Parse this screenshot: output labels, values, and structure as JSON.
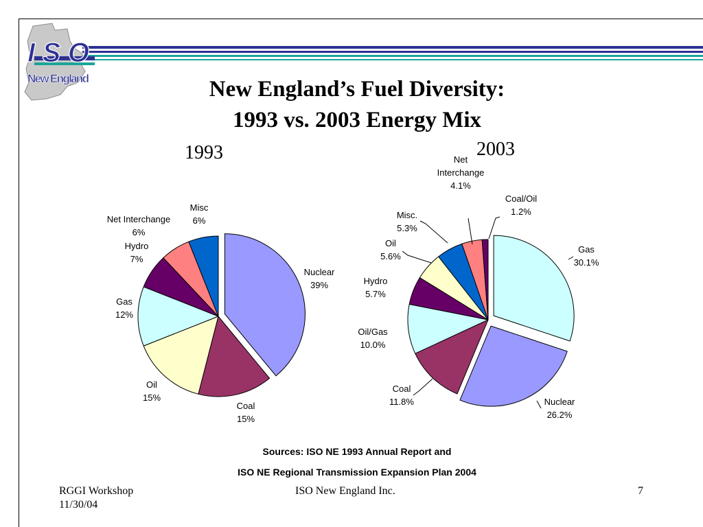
{
  "slide": {
    "title_line1": "New England’s Fuel Diversity:",
    "title_line2": "1993 vs. 2003 Energy Mix",
    "logo": {
      "text_top": "ISO",
      "text_bottom": "New England",
      "colors": {
        "navy": "#2e3192",
        "teal": "#1ba59a",
        "gray": "#c9c9c9"
      }
    },
    "sources_line1": "Sources: ISO NE 1993 Annual Report and",
    "sources_line2": "ISO NE Regional Transmission Expansion Plan 2004",
    "footer": {
      "left_line1": "RGGI Workshop",
      "left_line2": "11/30/04",
      "center": "ISO New England Inc.",
      "page_number": "7"
    }
  },
  "chart_data": [
    {
      "type": "pie",
      "title": "1993",
      "start_angle_deg": 0,
      "slices": [
        {
          "name": "Nuclear",
          "value": 39,
          "label": "39%",
          "color": "#9999ff",
          "exploded": true
        },
        {
          "name": "Coal",
          "value": 15,
          "label": "15%",
          "color": "#993366",
          "exploded": false
        },
        {
          "name": "Oil",
          "value": 15,
          "label": "15%",
          "color": "#ffffcc",
          "exploded": false
        },
        {
          "name": "Gas",
          "value": 12,
          "label": "12%",
          "color": "#ccffff",
          "exploded": false
        },
        {
          "name": "Hydro",
          "value": 7,
          "label": "7%",
          "color": "#660066",
          "exploded": false
        },
        {
          "name": "Net Interchange",
          "value": 6,
          "label": "6%",
          "color": "#ff8080",
          "exploded": false
        },
        {
          "name": "Misc",
          "value": 6,
          "label": "6%",
          "color": "#0066cc",
          "exploded": false
        }
      ]
    },
    {
      "type": "pie",
      "title": "2003",
      "start_angle_deg": 0,
      "slices": [
        {
          "name": "Gas",
          "value": 30.1,
          "label": "30.1%",
          "color": "#ccffff",
          "exploded": true
        },
        {
          "name": "Nuclear",
          "value": 26.2,
          "label": "26.2%",
          "color": "#9999ff",
          "exploded": true
        },
        {
          "name": "Coal",
          "value": 11.8,
          "label": "11.8%",
          "color": "#993366",
          "exploded": false
        },
        {
          "name": "Oil/Gas",
          "value": 10.0,
          "label": "10.0%",
          "color": "#ccffff",
          "exploded": false
        },
        {
          "name": "Hydro",
          "value": 5.7,
          "label": "5.7%",
          "color": "#660066",
          "exploded": false
        },
        {
          "name": "Oil",
          "value": 5.6,
          "label": "5.6%",
          "color": "#ffffcc",
          "exploded": false
        },
        {
          "name": "Misc.",
          "value": 5.3,
          "label": "5.3%",
          "color": "#0066cc",
          "exploded": false
        },
        {
          "name": "Net Interchange",
          "value": 4.1,
          "label": "4.1%",
          "color": "#ff8080",
          "exploded": false
        },
        {
          "name": "Coal/Oil",
          "value": 1.2,
          "label": "1.2%",
          "color": "#660066",
          "exploded": false
        }
      ]
    }
  ]
}
